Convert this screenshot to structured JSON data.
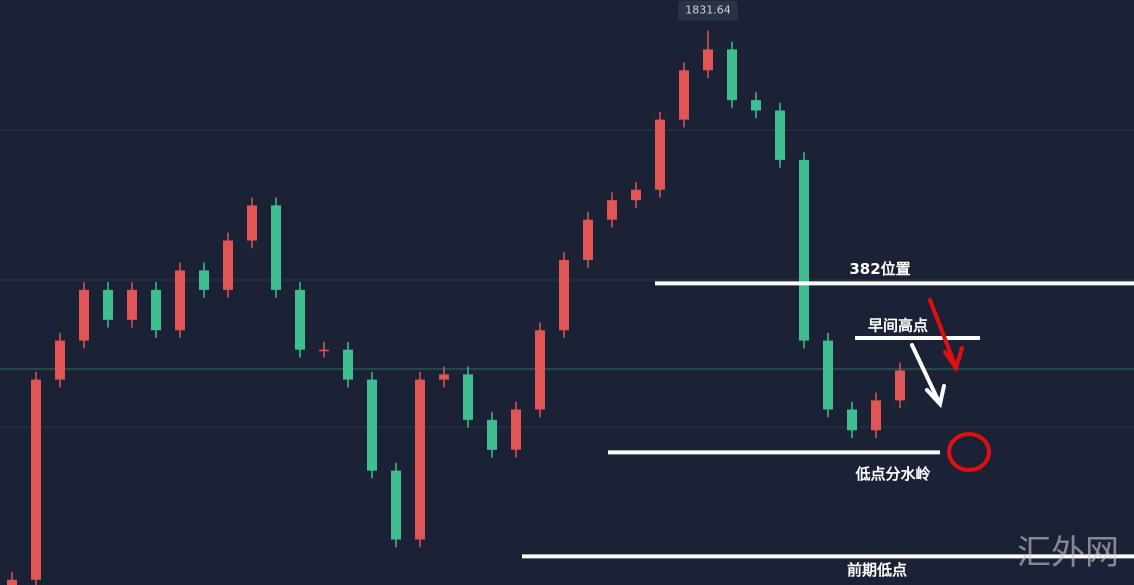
{
  "chart_data": {
    "type": "candlestick",
    "open": [
      1788.8,
      1789.4,
      1804.8,
      1807.8,
      1811.7,
      1809.4,
      1811.7,
      1808.6,
      1813.2,
      1811.7,
      1815.5,
      1818.2,
      1811.7,
      1807.1,
      1807.1,
      1804.8,
      1797.8,
      1792.5,
      1804.8,
      1805.2,
      1801.7,
      1799.4,
      1802.5,
      1808.6,
      1814.0,
      1817.1,
      1818.6,
      1819.4,
      1824.8,
      1828.6,
      1830.2,
      1826.3,
      1825.5,
      1821.7,
      1807.8,
      1802.5,
      1800.9,
      1803.2
    ],
    "high": [
      1790.0,
      1805.4,
      1808.4,
      1812.3,
      1812.3,
      1812.3,
      1812.3,
      1813.8,
      1813.8,
      1816.1,
      1818.8,
      1818.8,
      1812.3,
      1807.7,
      1807.7,
      1805.4,
      1798.4,
      1805.4,
      1805.8,
      1805.8,
      1802.3,
      1803.1,
      1809.2,
      1814.6,
      1817.7,
      1819.2,
      1820.0,
      1825.4,
      1829.2,
      1831.64,
      1830.8,
      1826.9,
      1826.1,
      1822.3,
      1808.4,
      1803.1,
      1803.8,
      1806.1
    ],
    "low": [
      1788.2,
      1788.8,
      1804.2,
      1807.2,
      1808.8,
      1808.8,
      1808.0,
      1808.0,
      1811.1,
      1811.1,
      1814.9,
      1811.1,
      1806.5,
      1806.5,
      1804.2,
      1797.2,
      1791.9,
      1791.9,
      1804.2,
      1801.1,
      1798.8,
      1798.8,
      1801.9,
      1808.0,
      1813.4,
      1816.5,
      1818.0,
      1818.8,
      1824.2,
      1828.0,
      1825.7,
      1824.9,
      1821.1,
      1807.2,
      1801.9,
      1800.3,
      1800.3,
      1802.6
    ],
    "close": [
      1789.4,
      1804.8,
      1807.8,
      1811.7,
      1809.4,
      1811.7,
      1808.6,
      1813.2,
      1811.7,
      1815.5,
      1818.2,
      1811.7,
      1807.1,
      1807.1,
      1804.8,
      1797.8,
      1792.5,
      1804.8,
      1805.2,
      1801.7,
      1799.4,
      1802.5,
      1808.6,
      1814.0,
      1817.1,
      1818.6,
      1819.4,
      1824.8,
      1828.6,
      1830.2,
      1826.3,
      1825.5,
      1821.7,
      1807.8,
      1802.5,
      1800.9,
      1803.2,
      1805.5
    ],
    "up_color": "#e05555",
    "down_color": "#3fbf8f",
    "ylim": [
      1789,
      1834
    ],
    "max_label": 1831.64,
    "levels": [
      {
        "label": "382位置",
        "value": 1812.2
      },
      {
        "label": "早间高点",
        "value": 1808
      },
      {
        "label": "低点分水岭",
        "value": 1799.2
      },
      {
        "label": "前期低点",
        "value": 1791.2
      }
    ],
    "watermark": "汇外网"
  }
}
